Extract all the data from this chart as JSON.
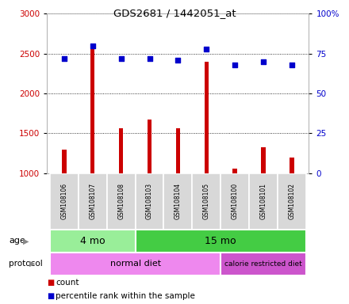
{
  "title": "GDS2681 / 1442051_at",
  "samples": [
    "GSM108106",
    "GSM108107",
    "GSM108108",
    "GSM108103",
    "GSM108104",
    "GSM108105",
    "GSM108100",
    "GSM108101",
    "GSM108102"
  ],
  "counts": [
    1300,
    2570,
    1560,
    1670,
    1565,
    2400,
    1060,
    1330,
    1195
  ],
  "percentile_ranks": [
    72,
    80,
    72,
    72,
    71,
    78,
    68,
    70,
    68
  ],
  "ylim_left": [
    1000,
    3000
  ],
  "ylim_right": [
    0,
    100
  ],
  "yticks_left": [
    1000,
    1500,
    2000,
    2500,
    3000
  ],
  "yticks_right": [
    0,
    25,
    50,
    75,
    100
  ],
  "bar_color": "#cc0000",
  "dot_color": "#0000cc",
  "bar_width": 0.15,
  "age_groups": [
    {
      "label": "4 mo",
      "start": 0,
      "end": 3,
      "color": "#99ee99"
    },
    {
      "label": "15 mo",
      "start": 3,
      "end": 9,
      "color": "#44cc44"
    }
  ],
  "protocol_groups": [
    {
      "label": "normal diet",
      "start": 0,
      "end": 6,
      "color": "#ee88ee"
    },
    {
      "label": "calorie restricted diet",
      "start": 6,
      "end": 9,
      "color": "#cc55cc"
    }
  ],
  "tick_label_color_left": "#cc0000",
  "tick_label_color_right": "#0000cc",
  "background_color": "#ffffff",
  "sample_bg_color": "#d8d8d8",
  "sample_border_color": "#cccccc"
}
